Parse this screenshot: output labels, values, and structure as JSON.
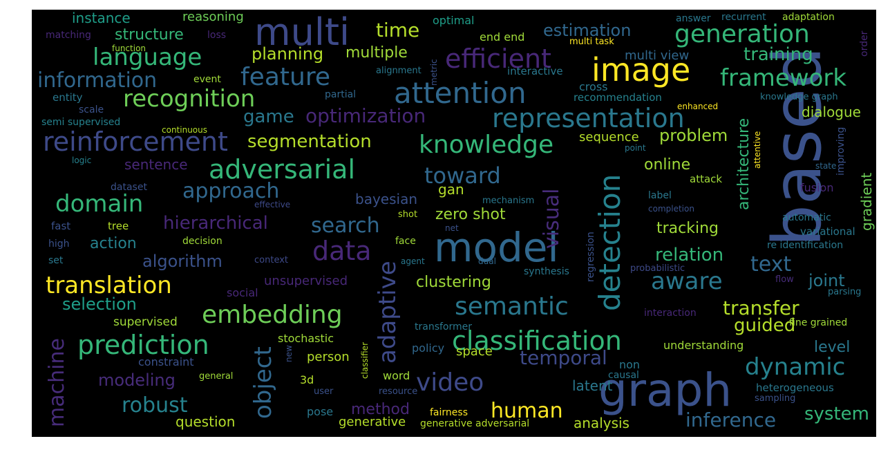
{
  "words": [
    {
      "text": "based",
      "color": "#3b528b"
    },
    {
      "text": "graph",
      "color": "#3b528b"
    },
    {
      "text": "model",
      "color": "#31688e"
    },
    {
      "text": "multi",
      "color": "#3e4a89"
    },
    {
      "text": "image",
      "color": "#fde725"
    },
    {
      "text": "attention",
      "color": "#31688e"
    },
    {
      "text": "detection",
      "color": "#26828e"
    },
    {
      "text": "classification",
      "color": "#35b779"
    },
    {
      "text": "reinforcement",
      "color": "#3e4a89"
    },
    {
      "text": "adversarial",
      "color": "#35b779"
    },
    {
      "text": "representation",
      "color": "#2a788e"
    },
    {
      "text": "efficient",
      "color": "#482878"
    },
    {
      "text": "generation",
      "color": "#35b779"
    },
    {
      "text": "knowledge",
      "color": "#35b779"
    },
    {
      "text": "feature",
      "color": "#31688e"
    },
    {
      "text": "semantic",
      "color": "#2a788e"
    },
    {
      "text": "video",
      "color": "#3e4a89"
    },
    {
      "text": "object",
      "color": "#31688e"
    },
    {
      "text": "adaptive",
      "color": "#3e4a89"
    },
    {
      "text": "data",
      "color": "#482878"
    },
    {
      "text": "prediction",
      "color": "#35b779"
    },
    {
      "text": "embedding",
      "color": "#6ece58"
    },
    {
      "text": "translation",
      "color": "#fde725"
    },
    {
      "text": "recognition",
      "color": "#6ece58"
    },
    {
      "text": "language",
      "color": "#35b779"
    },
    {
      "text": "domain",
      "color": "#35b779"
    },
    {
      "text": "framework",
      "color": "#35b779"
    },
    {
      "text": "aware",
      "color": "#2a788e"
    },
    {
      "text": "dynamic",
      "color": "#26828e"
    },
    {
      "text": "approach",
      "color": "#31688e"
    },
    {
      "text": "toward",
      "color": "#31688e"
    },
    {
      "text": "machine",
      "color": "#472c7a"
    },
    {
      "text": "visual",
      "color": "#472c7a"
    },
    {
      "text": "information",
      "color": "#31688e"
    },
    {
      "text": "text",
      "color": "#31688e"
    },
    {
      "text": "segmentation",
      "color": "#b5de2b"
    },
    {
      "text": "optimization",
      "color": "#482878"
    },
    {
      "text": "search",
      "color": "#31688e"
    },
    {
      "text": "robust",
      "color": "#26828e"
    },
    {
      "text": "human",
      "color": "#fde725"
    },
    {
      "text": "temporal",
      "color": "#3e4a89"
    },
    {
      "text": "transfer",
      "color": "#b5de2b"
    },
    {
      "text": "hierarchical",
      "color": "#482878"
    },
    {
      "text": "inference",
      "color": "#31688e"
    },
    {
      "text": "time",
      "color": "#b5de2b"
    },
    {
      "text": "estimation",
      "color": "#31688e"
    },
    {
      "text": "training",
      "color": "#35b779"
    },
    {
      "text": "relation",
      "color": "#35b779"
    },
    {
      "text": "guided",
      "color": "#b5de2b"
    },
    {
      "text": "system",
      "color": "#35b779"
    },
    {
      "text": "architecture",
      "color": "#35b779"
    },
    {
      "text": "problem",
      "color": "#a0da39"
    },
    {
      "text": "modeling",
      "color": "#472c7a"
    },
    {
      "text": "planning",
      "color": "#b5de2b"
    },
    {
      "text": "multiple",
      "color": "#a0da39"
    },
    {
      "text": "game",
      "color": "#2a788e"
    },
    {
      "text": "structure",
      "color": "#35b779"
    },
    {
      "text": "selection",
      "color": "#1f9e89"
    },
    {
      "text": "algorithm",
      "color": "#3b528b"
    },
    {
      "text": "clustering",
      "color": "#a0da39"
    },
    {
      "text": "joint",
      "color": "#2a788e"
    },
    {
      "text": "level",
      "color": "#2a788e"
    },
    {
      "text": "online",
      "color": "#a0da39"
    },
    {
      "text": "tracking",
      "color": "#a0da39"
    },
    {
      "text": "zero shot",
      "color": "#a0da39"
    },
    {
      "text": "dialogue",
      "color": "#a0da39"
    },
    {
      "text": "sentence",
      "color": "#482878"
    },
    {
      "text": "action",
      "color": "#26828e"
    },
    {
      "text": "sequence",
      "color": "#b5de2b"
    },
    {
      "text": "method",
      "color": "#482878"
    },
    {
      "text": "unsupervised",
      "color": "#482878"
    },
    {
      "text": "question",
      "color": "#b5de2b"
    },
    {
      "text": "bayesian",
      "color": "#3b528b"
    },
    {
      "text": "gan",
      "color": "#b5de2b"
    },
    {
      "text": "gradient",
      "color": "#6ece58"
    },
    {
      "text": "analysis",
      "color": "#b5de2b"
    },
    {
      "text": "latent",
      "color": "#2a788e"
    },
    {
      "text": "space",
      "color": "#b5de2b"
    },
    {
      "text": "person",
      "color": "#b5de2b"
    },
    {
      "text": "stochastic",
      "color": "#a0da39"
    },
    {
      "text": "generative",
      "color": "#b5de2b"
    },
    {
      "text": "instance",
      "color": "#1f9e89"
    },
    {
      "text": "reasoning",
      "color": "#6ece58"
    },
    {
      "text": "optimal",
      "color": "#1f9e89"
    },
    {
      "text": "end end",
      "color": "#a0da39"
    },
    {
      "text": "multi view",
      "color": "#31688e"
    },
    {
      "text": "cross",
      "color": "#2a788e"
    },
    {
      "text": "recommendation",
      "color": "#26828e"
    },
    {
      "text": "answer",
      "color": "#2a788e"
    },
    {
      "text": "recurrent",
      "color": "#2a788e"
    },
    {
      "text": "adaptation",
      "color": "#a0da39"
    },
    {
      "text": "order",
      "color": "#482878"
    },
    {
      "text": "matching",
      "color": "#482878"
    },
    {
      "text": "loss",
      "color": "#482878"
    },
    {
      "text": "function",
      "color": "#a0da39"
    },
    {
      "text": "multi task",
      "color": "#fde725"
    },
    {
      "text": "metric",
      "color": "#3b528b"
    },
    {
      "text": "alignment",
      "color": "#2a788e"
    },
    {
      "text": "interactive",
      "color": "#2a788e"
    },
    {
      "text": "entity",
      "color": "#2a788e"
    },
    {
      "text": "event",
      "color": "#a0da39"
    },
    {
      "text": "partial",
      "color": "#31688e"
    },
    {
      "text": "scale",
      "color": "#3b528b"
    },
    {
      "text": "semi supervised",
      "color": "#26828e"
    },
    {
      "text": "continuous",
      "color": "#b5de2b"
    },
    {
      "text": "logic",
      "color": "#26828e"
    },
    {
      "text": "dataset",
      "color": "#3b528b"
    },
    {
      "text": "effective",
      "color": "#3e4a89"
    },
    {
      "text": "fast",
      "color": "#3b528b"
    },
    {
      "text": "tree",
      "color": "#b5de2b"
    },
    {
      "text": "high",
      "color": "#3b528b"
    },
    {
      "text": "set",
      "color": "#2a788e"
    },
    {
      "text": "decision",
      "color": "#a0da39"
    },
    {
      "text": "context",
      "color": "#3e4a89"
    },
    {
      "text": "face",
      "color": "#a0da39"
    },
    {
      "text": "agent",
      "color": "#2a788e"
    },
    {
      "text": "mechanism",
      "color": "#2a788e"
    },
    {
      "text": "net",
      "color": "#3b528b"
    },
    {
      "text": "shot",
      "color": "#b5de2b"
    },
    {
      "text": "dual",
      "color": "#31688e"
    },
    {
      "text": "synthesis",
      "color": "#2a788e"
    },
    {
      "text": "social",
      "color": "#482878"
    },
    {
      "text": "regression",
      "color": "#3b528b"
    },
    {
      "text": "probabilistic",
      "color": "#3e4a89"
    },
    {
      "text": "flow",
      "color": "#472c7a"
    },
    {
      "text": "parsing",
      "color": "#2a788e"
    },
    {
      "text": "interaction",
      "color": "#482878"
    },
    {
      "text": "knowledge graph",
      "color": "#2a788e"
    },
    {
      "text": "enhanced",
      "color": "#fde725"
    },
    {
      "text": "attentive",
      "color": "#fde725"
    },
    {
      "text": "improving",
      "color": "#3b528b"
    },
    {
      "text": "state",
      "color": "#31688e"
    },
    {
      "text": "point",
      "color": "#2a788e"
    },
    {
      "text": "fusion",
      "color": "#482878"
    },
    {
      "text": "completion",
      "color": "#3b528b"
    },
    {
      "text": "label",
      "color": "#2a788e"
    },
    {
      "text": "attack",
      "color": "#a0da39"
    },
    {
      "text": "automatic",
      "color": "#2a788e"
    },
    {
      "text": "variational",
      "color": "#2a788e"
    },
    {
      "text": "re identification",
      "color": "#2a788e"
    },
    {
      "text": "understanding",
      "color": "#a0da39"
    },
    {
      "text": "fine grained",
      "color": "#a0da39"
    },
    {
      "text": "heterogeneous",
      "color": "#2a788e"
    },
    {
      "text": "sampling",
      "color": "#3b528b"
    },
    {
      "text": "non",
      "color": "#2a788e"
    },
    {
      "text": "causal",
      "color": "#2a788e"
    },
    {
      "text": "transformer",
      "color": "#2a788e"
    },
    {
      "text": "classifier",
      "color": "#b5de2b"
    },
    {
      "text": "policy",
      "color": "#31688e"
    },
    {
      "text": "new",
      "color": "#3b528b"
    },
    {
      "text": "word",
      "color": "#a0da39"
    },
    {
      "text": "3d",
      "color": "#b5de2b"
    },
    {
      "text": "general",
      "color": "#a0da39"
    },
    {
      "text": "user",
      "color": "#3b528b"
    },
    {
      "text": "resource",
      "color": "#3b528b"
    },
    {
      "text": "pose",
      "color": "#2a788e"
    },
    {
      "text": "fairness",
      "color": "#fde725"
    },
    {
      "text": "generative adversarial",
      "color": "#b5de2b"
    },
    {
      "text": "constraint",
      "color": "#3b528b"
    },
    {
      "text": "supervised",
      "color": "#a0da39"
    }
  ]
}
